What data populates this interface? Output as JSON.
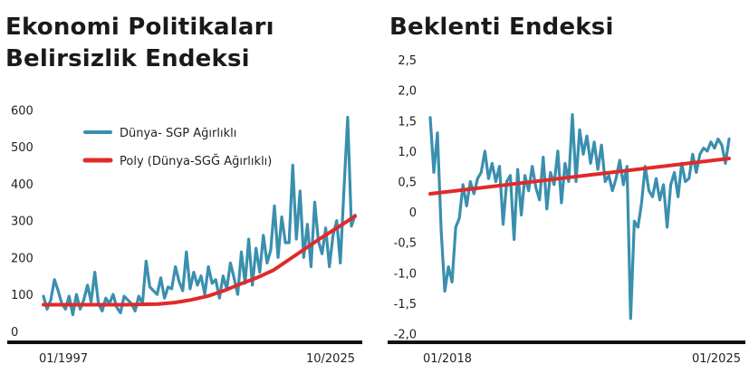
{
  "chart_data": [
    {
      "type": "line",
      "title": [
        "Ekonomi Politikaları",
        "Belirsizlik Endeksi"
      ],
      "xlabel": "",
      "ylabel": "",
      "x_tick_labels": [
        "01/1997",
        "10/2025"
      ],
      "y_ticks": [
        0,
        100,
        200,
        300,
        400,
        500,
        600
      ],
      "y_tick_labels": [
        "0",
        "100",
        "200",
        "300",
        "400",
        "500",
        "600"
      ],
      "ylim": [
        -20,
        640
      ],
      "grid": false,
      "legend": "upper-left",
      "series": [
        {
          "name": "Dünya- SGP Ağırlıklı",
          "color": "#3a8fae",
          "values": [
            95,
            60,
            85,
            140,
            110,
            75,
            60,
            95,
            45,
            100,
            60,
            85,
            125,
            80,
            160,
            75,
            55,
            90,
            75,
            100,
            65,
            50,
            95,
            85,
            75,
            55,
            95,
            75,
            190,
            120,
            110,
            100,
            145,
            90,
            120,
            115,
            175,
            135,
            110,
            215,
            115,
            160,
            125,
            150,
            100,
            175,
            130,
            140,
            90,
            150,
            115,
            185,
            145,
            100,
            215,
            130,
            250,
            125,
            225,
            160,
            260,
            185,
            220,
            340,
            200,
            310,
            240,
            240,
            450,
            250,
            380,
            200,
            290,
            175,
            350,
            245,
            210,
            280,
            175,
            260,
            300,
            185,
            390,
            580,
            285,
            315
          ]
        },
        {
          "name": "Poly (Dünya-SGĞ Ağırlıklı)",
          "color": "#e02a2a",
          "values": [
            72,
            72,
            72,
            72,
            72,
            72,
            73,
            74,
            78,
            85,
            95,
            110,
            128,
            145,
            165,
            195,
            225,
            255,
            283,
            312
          ]
        }
      ]
    },
    {
      "type": "line",
      "title": "Beklenti Endeksi",
      "xlabel": "",
      "ylabel": "",
      "x_tick_labels": [
        "01/2018",
        "01/2025"
      ],
      "y_ticks": [
        2.5,
        2.0,
        1.5,
        1.0,
        0.5,
        0,
        -0.5,
        -1.0,
        -1.5,
        -2.0
      ],
      "y_tick_labels": [
        "2,5",
        "2,0",
        "1,5",
        "1,0",
        "0,5",
        "0",
        "-0,5",
        "-1,0",
        "-1,5",
        "-2,0"
      ],
      "ylim": [
        -2.2,
        2.65
      ],
      "grid": false,
      "legend": "none",
      "series": [
        {
          "name": "",
          "color": "#3a8fae",
          "values": [
            1.55,
            0.65,
            1.3,
            -0.3,
            -1.3,
            -0.9,
            -1.15,
            -0.25,
            -0.1,
            0.45,
            0.1,
            0.5,
            0.3,
            0.55,
            0.65,
            1.0,
            0.55,
            0.8,
            0.5,
            0.75,
            -0.2,
            0.5,
            0.6,
            -0.45,
            0.7,
            -0.05,
            0.6,
            0.35,
            0.75,
            0.4,
            0.2,
            0.9,
            0.05,
            0.65,
            0.45,
            1.0,
            0.15,
            0.8,
            0.5,
            1.6,
            0.5,
            1.35,
            0.95,
            1.25,
            0.8,
            1.15,
            0.7,
            1.1,
            0.5,
            0.6,
            0.35,
            0.55,
            0.85,
            0.45,
            0.75,
            -1.75,
            -0.15,
            -0.25,
            0.15,
            0.75,
            0.35,
            0.25,
            0.55,
            0.2,
            0.45,
            -0.25,
            0.45,
            0.65,
            0.25,
            0.8,
            0.5,
            0.55,
            0.95,
            0.65,
            0.95,
            1.05,
            1.0,
            1.15,
            1.05,
            1.2,
            1.1,
            0.8,
            1.2
          ]
        },
        {
          "name": "",
          "color": "#e02a2a",
          "values": [
            0.3,
            0.88
          ]
        }
      ]
    }
  ]
}
